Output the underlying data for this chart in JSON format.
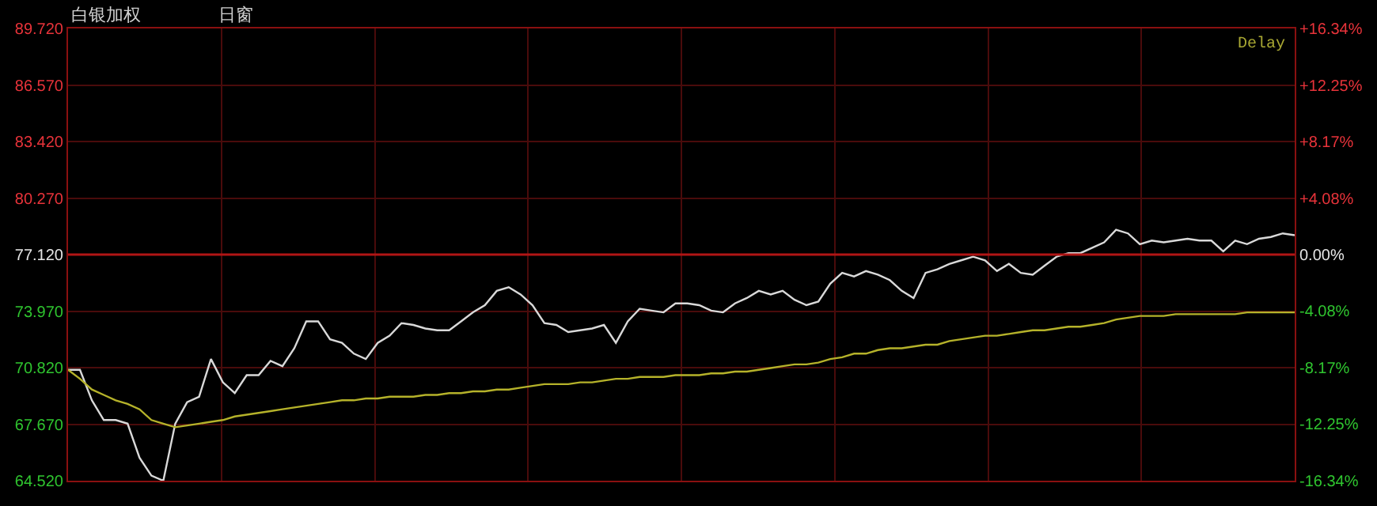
{
  "chart_data": {
    "type": "line",
    "title": "白银加权",
    "annotations": [
      "日窗",
      "Delay"
    ],
    "categories": [
      null,
      null,
      null,
      null,
      null,
      null,
      null,
      null,
      null,
      null,
      null,
      null,
      null,
      null,
      null,
      null,
      null,
      null,
      null,
      null,
      null,
      null,
      null,
      null,
      null,
      null,
      null,
      null,
      null,
      null,
      null,
      null,
      null,
      null,
      null,
      null,
      null,
      null,
      null,
      null,
      null,
      null,
      null,
      null,
      null,
      null,
      null,
      null,
      null,
      null,
      null,
      null,
      null,
      null,
      null,
      null,
      null,
      null,
      null,
      null,
      null,
      null,
      null,
      null,
      null,
      null,
      null,
      null,
      null,
      null,
      null,
      null,
      null,
      null,
      null,
      null,
      null,
      null,
      null,
      null,
      null,
      null,
      null,
      null,
      null,
      null,
      null,
      null,
      null,
      null,
      null,
      null,
      null,
      null,
      null,
      null,
      null,
      null,
      null,
      null,
      null,
      null,
      null,
      null
    ],
    "series": [
      {
        "color": "#d9d9d9",
        "values": [
          70.7,
          70.7,
          69.0,
          67.9,
          67.9,
          67.7,
          65.8,
          64.8,
          64.52,
          67.7,
          68.9,
          69.2,
          71.3,
          70.0,
          69.4,
          70.4,
          70.4,
          71.2,
          70.9,
          71.9,
          73.4,
          73.4,
          72.4,
          72.2,
          71.6,
          71.3,
          72.2,
          72.6,
          73.3,
          73.2,
          73.0,
          72.9,
          72.9,
          73.4,
          73.9,
          74.3,
          75.1,
          75.3,
          74.9,
          74.3,
          73.3,
          73.2,
          72.8,
          72.9,
          73.0,
          73.2,
          72.2,
          73.4,
          74.1,
          74.0,
          73.9,
          74.4,
          74.4,
          74.3,
          74.0,
          73.9,
          74.4,
          74.7,
          75.1,
          74.9,
          75.1,
          74.6,
          74.3,
          74.5,
          75.5,
          76.1,
          75.9,
          76.2,
          76.0,
          75.7,
          75.1,
          74.7,
          76.1,
          76.3,
          76.6,
          76.8,
          77.0,
          76.8,
          76.2,
          76.6,
          76.1,
          76.0,
          76.5,
          77.0,
          77.2,
          77.2,
          77.5,
          77.8,
          78.5,
          78.3,
          77.7,
          77.9,
          77.8,
          77.9,
          78.0,
          77.9,
          77.9,
          77.3,
          77.9,
          77.7,
          78.0,
          78.1,
          78.3,
          78.2
        ]
      },
      {
        "color": "#b5b22a",
        "values": [
          70.7,
          70.2,
          69.6,
          69.3,
          69.0,
          68.8,
          68.5,
          67.9,
          67.7,
          67.5,
          67.6,
          67.7,
          67.8,
          67.9,
          68.1,
          68.2,
          68.3,
          68.4,
          68.5,
          68.6,
          68.7,
          68.8,
          68.9,
          69.0,
          69.0,
          69.1,
          69.1,
          69.2,
          69.2,
          69.2,
          69.3,
          69.3,
          69.4,
          69.4,
          69.5,
          69.5,
          69.6,
          69.6,
          69.7,
          69.8,
          69.9,
          69.9,
          69.9,
          70.0,
          70.0,
          70.1,
          70.2,
          70.2,
          70.3,
          70.3,
          70.3,
          70.4,
          70.4,
          70.4,
          70.5,
          70.5,
          70.6,
          70.6,
          70.7,
          70.8,
          70.9,
          71.0,
          71.0,
          71.1,
          71.3,
          71.4,
          71.6,
          71.6,
          71.8,
          71.9,
          71.9,
          72.0,
          72.1,
          72.1,
          72.3,
          72.4,
          72.5,
          72.6,
          72.6,
          72.7,
          72.8,
          72.9,
          72.9,
          73.0,
          73.1,
          73.1,
          73.2,
          73.3,
          73.5,
          73.6,
          73.7,
          73.7,
          73.7,
          73.8,
          73.8,
          73.8,
          73.8,
          73.8,
          73.8,
          73.9,
          73.9,
          73.9,
          73.9,
          73.9
        ]
      }
    ],
    "ylim": [
      64.52,
      89.72
    ],
    "yticks": [
      {
        "value": 64.52,
        "label": "64.520"
      },
      {
        "value": 67.67,
        "label": "67.670"
      },
      {
        "value": 70.82,
        "label": "70.820"
      },
      {
        "value": 73.97,
        "label": "73.970"
      },
      {
        "value": 77.12,
        "label": "77.120"
      },
      {
        "value": 80.27,
        "label": "80.270"
      },
      {
        "value": 83.42,
        "label": "83.420"
      },
      {
        "value": 86.57,
        "label": "86.570"
      },
      {
        "value": 89.72,
        "label": "89.720"
      }
    ],
    "y2lim": [
      -16.34,
      16.34
    ],
    "y2ticks": [
      {
        "value": -16.34,
        "label": "-16.34%"
      },
      {
        "value": -12.25,
        "label": "-12.25%"
      },
      {
        "value": -8.17,
        "label": "-8.17%"
      },
      {
        "value": -4.08,
        "label": "-4.08%"
      },
      {
        "value": 0,
        "label": "0.00%"
      },
      {
        "value": 4.08,
        "label": "+4.08%"
      },
      {
        "value": 8.17,
        "label": "+8.17%"
      },
      {
        "value": 12.25,
        "label": "+12.25%"
      },
      {
        "value": 16.34,
        "label": "+16.34%"
      }
    ],
    "ref_lines": [
      {
        "axis": "y",
        "value": 77.12,
        "color": "#b01515"
      }
    ],
    "grid": true,
    "marker": "none",
    "line_style": "solid"
  }
}
